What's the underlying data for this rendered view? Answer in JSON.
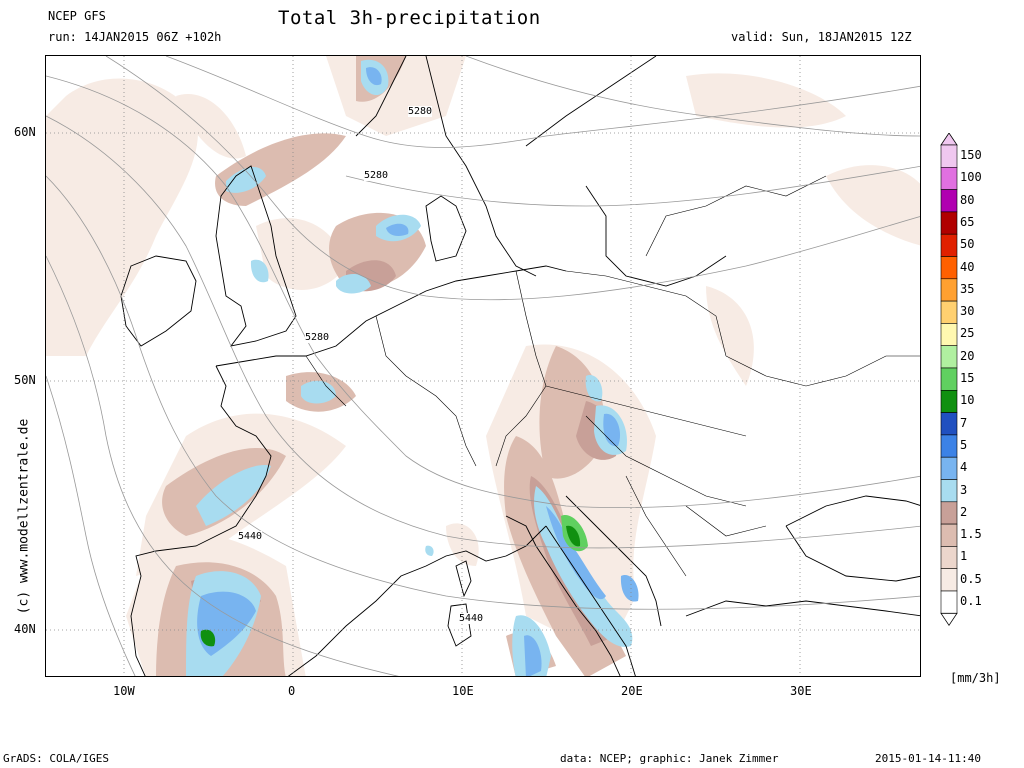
{
  "header": {
    "model": "NCEP GFS",
    "run": "run: 14JAN2015 06Z +102h",
    "title": "Total 3h-precipitation",
    "valid": "valid: Sun, 18JAN2015 12Z"
  },
  "map": {
    "lat_labels": [
      "60N",
      "50N",
      "40N"
    ],
    "lon_labels": [
      "10W",
      "0",
      "10E",
      "20E",
      "30E"
    ],
    "contour_labels": [
      "5280",
      "5280",
      "5280",
      "5440",
      "5440"
    ],
    "side_credit": "(c) www.modellzentrale.de"
  },
  "legend": {
    "unit": "[mm/3h]",
    "levels": [
      {
        "label": "150",
        "color": "#f0c8f0"
      },
      {
        "label": "100",
        "color": "#e070e0"
      },
      {
        "label": "80",
        "color": "#b000b0"
      },
      {
        "label": "65",
        "color": "#b00000"
      },
      {
        "label": "50",
        "color": "#e02000"
      },
      {
        "label": "40",
        "color": "#ff6000"
      },
      {
        "label": "35",
        "color": "#ffa030"
      },
      {
        "label": "30",
        "color": "#ffd070"
      },
      {
        "label": "25",
        "color": "#fff8b0"
      },
      {
        "label": "20",
        "color": "#b0f0a0"
      },
      {
        "label": "15",
        "color": "#60d060"
      },
      {
        "label": "10",
        "color": "#109010"
      },
      {
        "label": "7",
        "color": "#2050c0"
      },
      {
        "label": "5",
        "color": "#3c82e6"
      },
      {
        "label": "4",
        "color": "#78b4f0"
      },
      {
        "label": "3",
        "color": "#a8dcf0"
      },
      {
        "label": "2",
        "color": "#c8a098"
      },
      {
        "label": "1.5",
        "color": "#dcbcb0"
      },
      {
        "label": "1",
        "color": "#ecd6cc"
      },
      {
        "label": "0.5",
        "color": "#f7ebe4"
      },
      {
        "label": "0.1",
        "color": "#ffffff"
      }
    ]
  },
  "footer": {
    "left": "GrADS: COLA/IGES",
    "data": "data: NCEP; graphic: Janek Zimmer",
    "date": "2015-01-14-11:40"
  }
}
